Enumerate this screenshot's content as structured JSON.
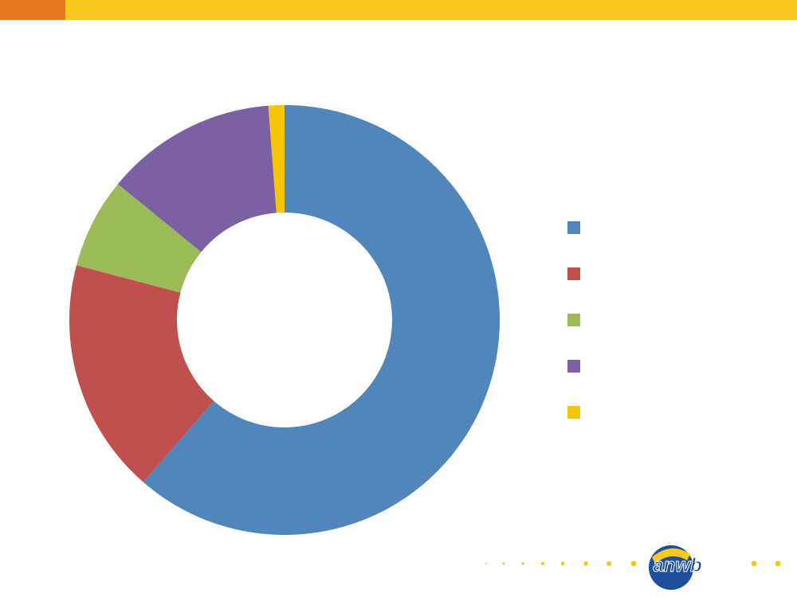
{
  "chart_data": {
    "type": "donut",
    "categories": [
      null,
      null,
      null,
      null,
      null
    ],
    "values": [
      61.4,
      17.7,
      6.8,
      12.9,
      1.2
    ],
    "colors": [
      "#5186bb",
      "#c0504d",
      "#9bbb59",
      "#7b60a3",
      "#f7c600"
    ],
    "legend": "right"
  },
  "logo": "anwb"
}
